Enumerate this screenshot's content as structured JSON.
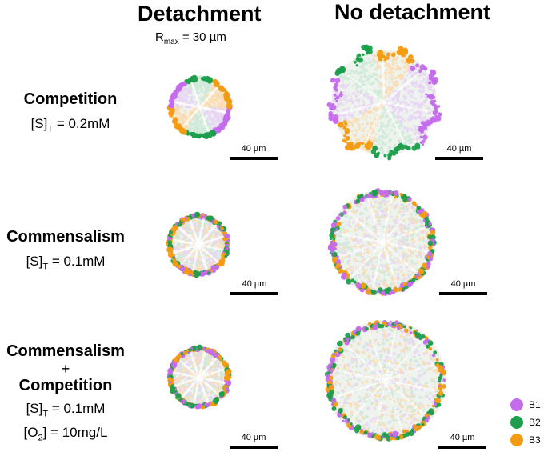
{
  "columns": {
    "detachment": "Detachment",
    "no_detachment": "No detachment",
    "rmax": {
      "prefix": "R",
      "sub": "max",
      "suffix": " = 30 µm"
    }
  },
  "rows": [
    {
      "title": "Competition",
      "cond1": {
        "pre": "[S]",
        "sub": "T",
        "post": " = 0.2mM"
      }
    },
    {
      "title": "Commensalism",
      "cond1": {
        "pre": "[S]",
        "sub": "T",
        "post": " = 0.1mM"
      }
    },
    {
      "title": "Commensalism",
      "plus": "+",
      "title2": "Competition",
      "cond1": {
        "pre": "[S]",
        "sub": "T",
        "post": " = 0.1mM"
      },
      "cond2": {
        "pre": "[O",
        "sub": "2",
        "post": "] = 10mg/L"
      }
    }
  ],
  "scalebar": "40 µm",
  "legend": [
    {
      "name": "B1",
      "color": "#c46cec"
    },
    {
      "name": "B2",
      "color": "#1e9e4c"
    },
    {
      "name": "B3",
      "color": "#f39c12"
    }
  ]
}
